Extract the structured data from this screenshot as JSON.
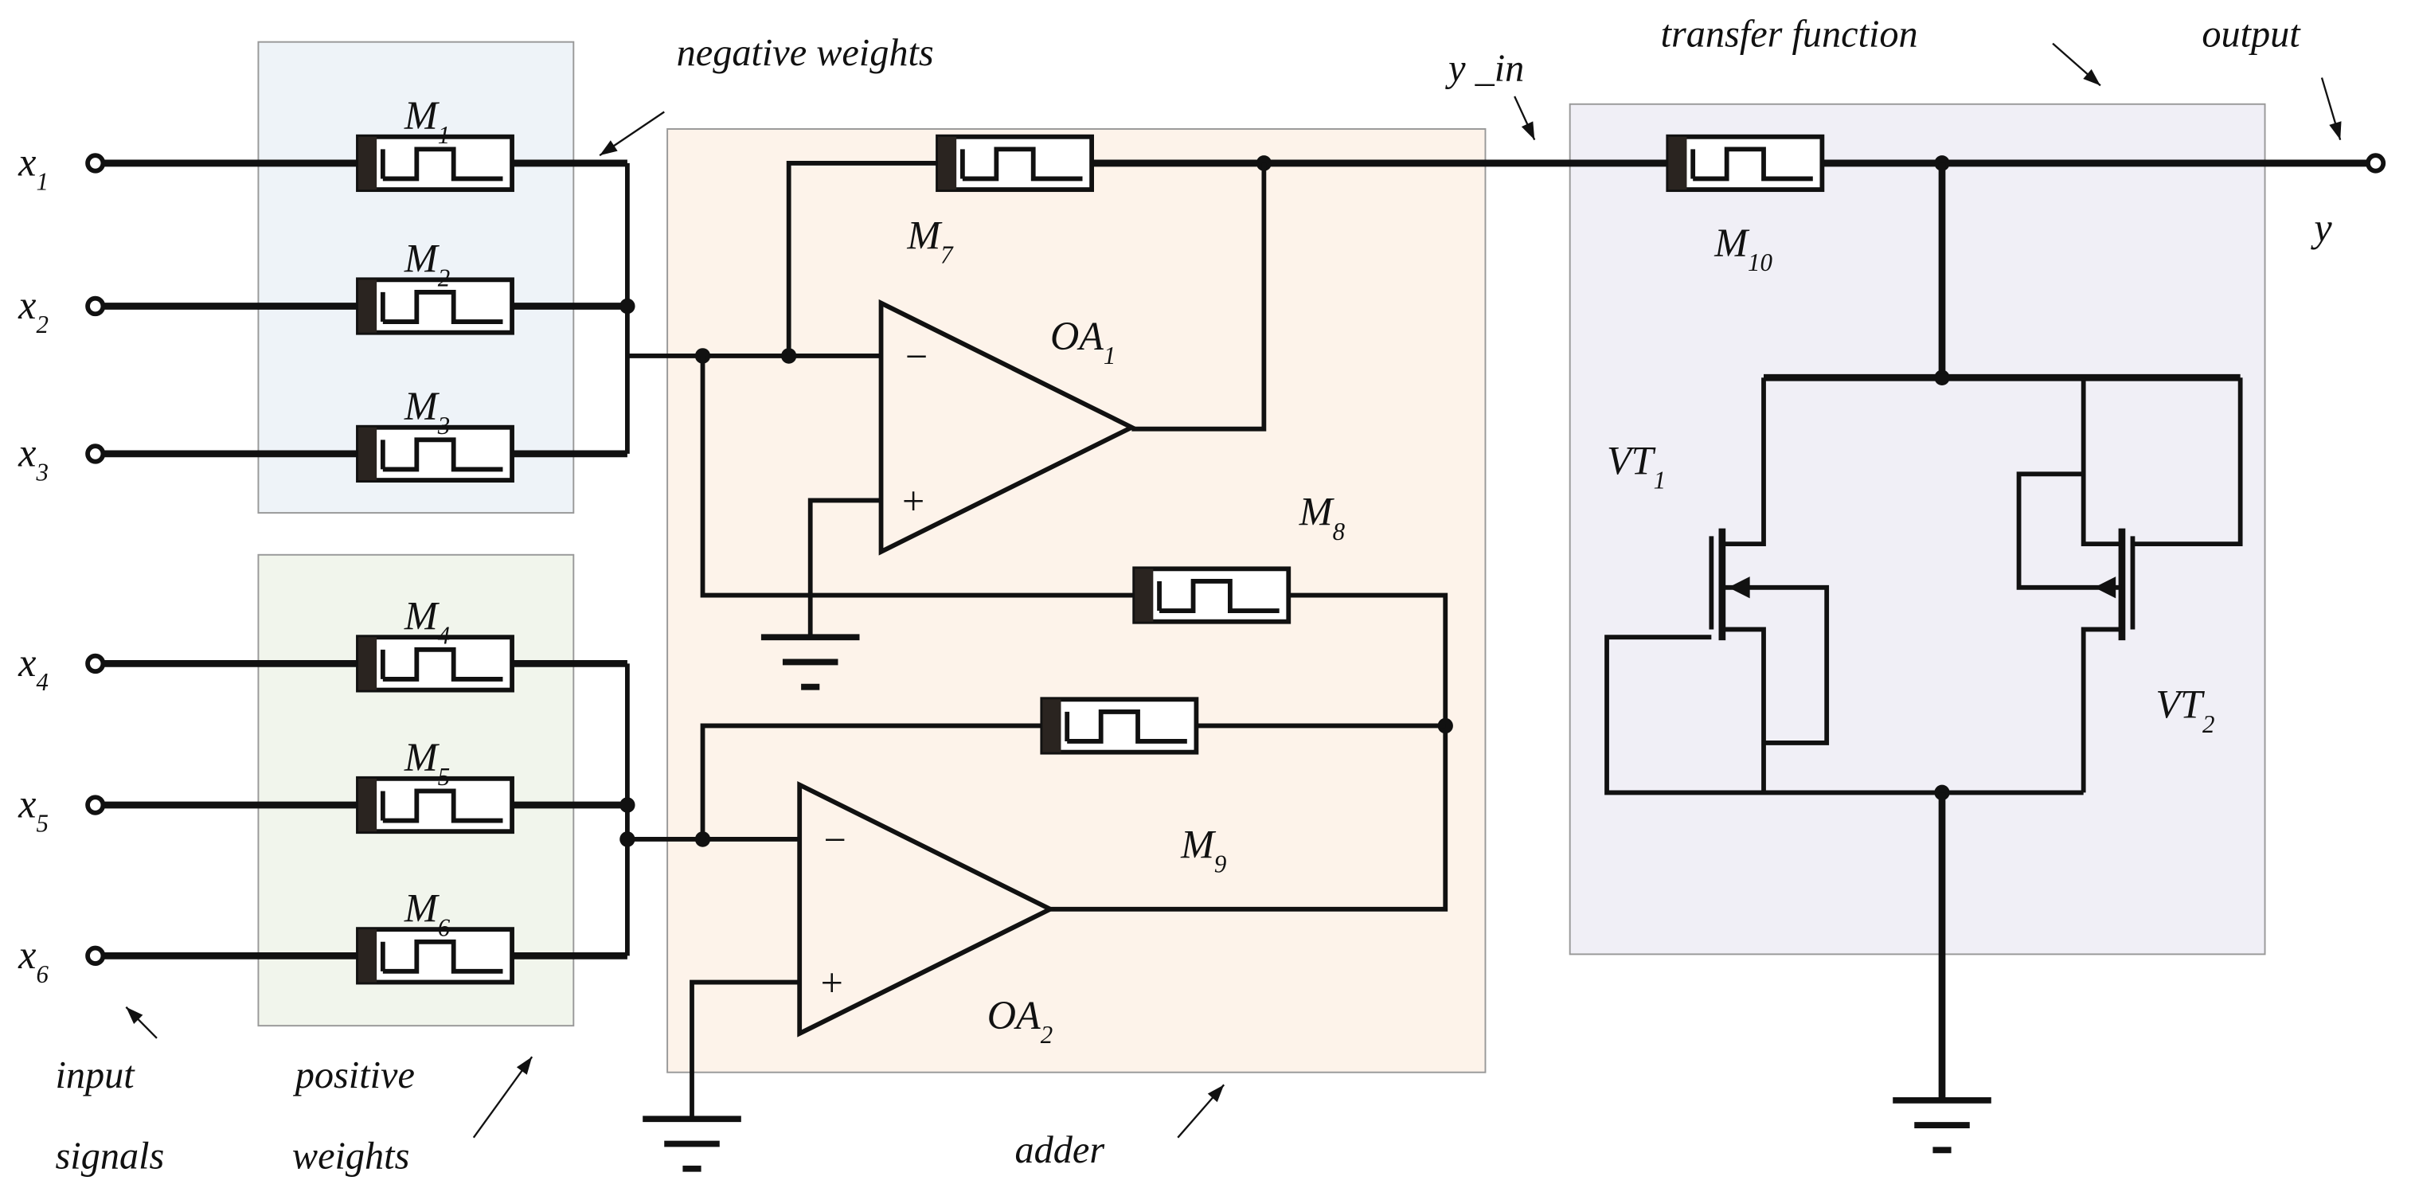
{
  "regions": {
    "negative_weights": {
      "label": "negative weights",
      "color": "#eef3f8"
    },
    "positive_weights": {
      "label": "positive weights",
      "color": "#f1f5ec"
    },
    "adder": {
      "label": "adder",
      "color": "#fdf3ea"
    },
    "transfer_function": {
      "label": "transfer function",
      "color": "#f0eff6"
    }
  },
  "annotations": {
    "input_signals_1": "input",
    "input_signals_2": "signals",
    "positive_1": "positive",
    "positive_2": "weights",
    "y_in": "y _in",
    "output": "output"
  },
  "inputs": [
    {
      "base": "x",
      "sub": "1"
    },
    {
      "base": "x",
      "sub": "2"
    },
    {
      "base": "x",
      "sub": "3"
    },
    {
      "base": "x",
      "sub": "4"
    },
    {
      "base": "x",
      "sub": "5"
    },
    {
      "base": "x",
      "sub": "6"
    }
  ],
  "memristors": [
    {
      "base": "M",
      "sub": "1"
    },
    {
      "base": "M",
      "sub": "2"
    },
    {
      "base": "M",
      "sub": "3"
    },
    {
      "base": "M",
      "sub": "4"
    },
    {
      "base": "M",
      "sub": "5"
    },
    {
      "base": "M",
      "sub": "6"
    },
    {
      "base": "M",
      "sub": "7"
    },
    {
      "base": "M",
      "sub": "8"
    },
    {
      "base": "M",
      "sub": "9"
    },
    {
      "base": "M",
      "sub": "10"
    }
  ],
  "opamps": [
    {
      "base": "OA",
      "sub": "1"
    },
    {
      "base": "OA",
      "sub": "2"
    }
  ],
  "transistors": [
    {
      "base": "VT",
      "sub": "1"
    },
    {
      "base": "VT",
      "sub": "2"
    }
  ],
  "output_label": "y",
  "opamp_signs": {
    "minus": "−",
    "plus": "+"
  }
}
